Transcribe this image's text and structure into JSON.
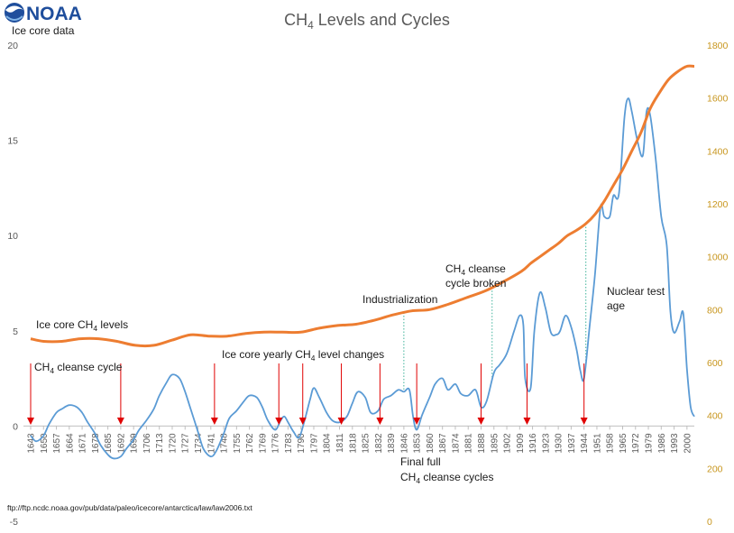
{
  "logo": {
    "text": "NOAA"
  },
  "chart_data": {
    "type": "line",
    "title_main": "CH",
    "title_sub": "4",
    "title_rest": " Levels and Cycles",
    "left_axis_label": "Ice core data",
    "source_note": "ftp://ftp.ncdc.noaa.gov/pub/data/paleo/icecore/antarctica/law/law2006.txt",
    "y_left": {
      "min": -5,
      "max": 20,
      "ticks": [
        -5,
        0,
        5,
        10,
        15,
        20
      ]
    },
    "y_right": {
      "min": 0,
      "max": 1800,
      "ticks": [
        0,
        200,
        400,
        600,
        800,
        1000,
        1200,
        1400,
        1600,
        1800
      ]
    },
    "x_range": [
      1643,
      2004
    ],
    "x_ticks": [
      1643,
      1650,
      1657,
      1664,
      1671,
      1678,
      1685,
      1692,
      1699,
      1706,
      1713,
      1720,
      1727,
      1734,
      1741,
      1748,
      1755,
      1762,
      1769,
      1776,
      1783,
      1790,
      1797,
      1804,
      1811,
      1818,
      1825,
      1832,
      1839,
      1846,
      1853,
      1860,
      1867,
      1874,
      1881,
      1888,
      1895,
      1902,
      1909,
      1916,
      1923,
      1930,
      1937,
      1944,
      1951,
      1958,
      1965,
      1972,
      1979,
      1986,
      1993,
      2000
    ],
    "colors": {
      "changes": "#5b9bd5",
      "levels": "#ed7d31",
      "arrow": "#e00000",
      "dotted": "#3fb39a",
      "right_axis": "#c8961e"
    },
    "series": [
      {
        "name": "Ice core yearly CH4 level changes",
        "axis": "left",
        "x": [
          1643,
          1646,
          1650,
          1653,
          1657,
          1660,
          1664,
          1668,
          1671,
          1674,
          1678,
          1681,
          1685,
          1688,
          1692,
          1695,
          1699,
          1702,
          1706,
          1710,
          1713,
          1717,
          1720,
          1724,
          1727,
          1730,
          1734,
          1737,
          1741,
          1744,
          1748,
          1751,
          1755,
          1759,
          1762,
          1766,
          1769,
          1772,
          1776,
          1779,
          1781,
          1783,
          1786,
          1789,
          1792,
          1795,
          1797,
          1800,
          1804,
          1807,
          1811,
          1815,
          1818,
          1821,
          1825,
          1828,
          1832,
          1835,
          1839,
          1843,
          1846,
          1849,
          1851,
          1853,
          1856,
          1860,
          1863,
          1867,
          1870,
          1874,
          1877,
          1881,
          1885,
          1888,
          1891,
          1895,
          1898,
          1902,
          1906,
          1909,
          1911,
          1912,
          1915,
          1917,
          1920,
          1923,
          1926,
          1929,
          1931,
          1934,
          1937,
          1940,
          1942,
          1944,
          1947,
          1950,
          1953,
          1955,
          1958,
          1960,
          1963,
          1966,
          1968,
          1970,
          1973,
          1976,
          1978,
          1980,
          1983,
          1986,
          1989,
          1991,
          1993,
          1996,
          1998,
          2000,
          2002,
          2004
        ],
        "values": [
          -0.5,
          -0.8,
          -0.5,
          0.1,
          0.7,
          0.9,
          1.1,
          1.0,
          0.7,
          0.2,
          -0.4,
          -1.0,
          -1.5,
          -1.7,
          -1.6,
          -1.2,
          -0.7,
          -0.2,
          0.3,
          0.9,
          1.6,
          2.3,
          2.7,
          2.5,
          1.8,
          0.9,
          -0.3,
          -1.2,
          -1.6,
          -1.3,
          -0.4,
          0.4,
          0.8,
          1.3,
          1.6,
          1.5,
          1.0,
          0.3,
          -0.2,
          0.3,
          0.5,
          0.2,
          -0.3,
          -0.6,
          0.3,
          1.4,
          2.0,
          1.5,
          0.7,
          0.3,
          0.2,
          0.5,
          1.2,
          1.8,
          1.5,
          0.7,
          0.8,
          1.4,
          1.6,
          1.9,
          1.8,
          1.9,
          0.5,
          -0.2,
          0.6,
          1.5,
          2.2,
          2.5,
          1.9,
          2.2,
          1.7,
          1.6,
          1.9,
          1.0,
          1.3,
          2.8,
          3.2,
          3.8,
          5.0,
          5.8,
          5.3,
          2.5,
          2.0,
          5.0,
          7.0,
          6.2,
          4.9,
          4.8,
          5.0,
          5.8,
          5.2,
          4.0,
          2.9,
          2.5,
          5.2,
          8.0,
          11.5,
          11.0,
          11.0,
          12.1,
          12.2,
          16.2,
          17.2,
          16.5,
          15.0,
          14.2,
          16.5,
          16.3,
          14.0,
          11.0,
          9.5,
          6.0,
          4.9,
          5.5,
          5.9,
          3.0,
          1.0,
          0.5
        ]
      },
      {
        "name": "Ice core CH4 levels",
        "axis": "right",
        "x": [
          1643,
          1650,
          1660,
          1670,
          1680,
          1690,
          1700,
          1710,
          1720,
          1730,
          1740,
          1750,
          1760,
          1770,
          1780,
          1790,
          1800,
          1810,
          1820,
          1830,
          1840,
          1850,
          1860,
          1870,
          1880,
          1890,
          1900,
          1910,
          1915,
          1920,
          1925,
          1930,
          1935,
          1940,
          1945,
          1950,
          1955,
          1960,
          1965,
          1970,
          1975,
          1980,
          1985,
          1990,
          1995,
          2000,
          2004
        ],
        "values": [
          690,
          680,
          680,
          690,
          690,
          680,
          665,
          665,
          685,
          705,
          700,
          700,
          710,
          715,
          715,
          715,
          730,
          740,
          745,
          760,
          780,
          795,
          800,
          820,
          845,
          870,
          905,
          945,
          975,
          1000,
          1025,
          1050,
          1080,
          1100,
          1125,
          1160,
          1210,
          1270,
          1330,
          1400,
          1470,
          1560,
          1620,
          1670,
          1700,
          1720,
          1720
        ]
      }
    ],
    "annotations": {
      "ch4_levels_a": "Ice core CH",
      "ch4_levels_b": "4",
      "ch4_levels_c": " levels",
      "cleanse_a": "CH",
      "cleanse_b": "4",
      "cleanse_c": " cleanse cycle",
      "yearly_a": "Ice core yearly CH",
      "yearly_b": "4",
      "yearly_c": " level changes",
      "industrialization": "Industrialization",
      "broken_1a": "CH",
      "broken_1b": "4",
      "broken_1c": " cleanse",
      "broken_2": "cycle broken",
      "nuclear_1": "Nuclear test",
      "nuclear_2": "age",
      "final_1": "Final full",
      "final_2a": "CH",
      "final_2b": "4",
      "final_2c": " cleanse cycles"
    },
    "red_arrow_years": [
      1643,
      1692,
      1743,
      1778,
      1791,
      1812,
      1833,
      1853,
      1888,
      1913,
      1944
    ],
    "dotted_line_years": [
      1846,
      1894,
      1945
    ]
  }
}
